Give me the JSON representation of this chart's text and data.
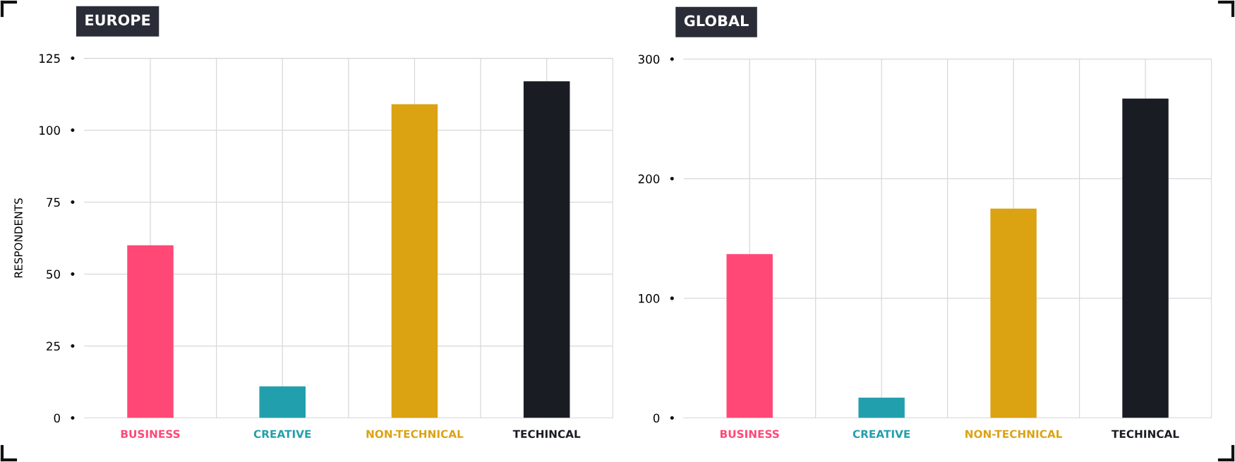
{
  "chart_data": [
    {
      "type": "bar",
      "title": "EUROPE",
      "ylabel": "RESPONDENTS",
      "categories": [
        "BUSINESS",
        "CREATIVE",
        "NON-TECHNICAL",
        "TECHINCAL"
      ],
      "values": [
        60,
        11,
        109,
        117
      ],
      "colors": [
        "#ff4876",
        "#229fac",
        "#dba212",
        "#1a1c24"
      ],
      "ylim": [
        0,
        125
      ],
      "yticks": [
        0,
        25,
        50,
        75,
        100,
        125
      ],
      "grid": true
    },
    {
      "type": "bar",
      "title": "GLOBAL",
      "categories": [
        "BUSINESS",
        "CREATIVE",
        "NON-TECHNICAL",
        "TECHINCAL"
      ],
      "values": [
        137,
        17,
        175,
        267
      ],
      "colors": [
        "#ff4876",
        "#229fac",
        "#dba212",
        "#1a1c24"
      ],
      "ylim": [
        0,
        300
      ],
      "yticks": [
        0,
        100,
        200,
        300
      ],
      "grid": true
    }
  ]
}
